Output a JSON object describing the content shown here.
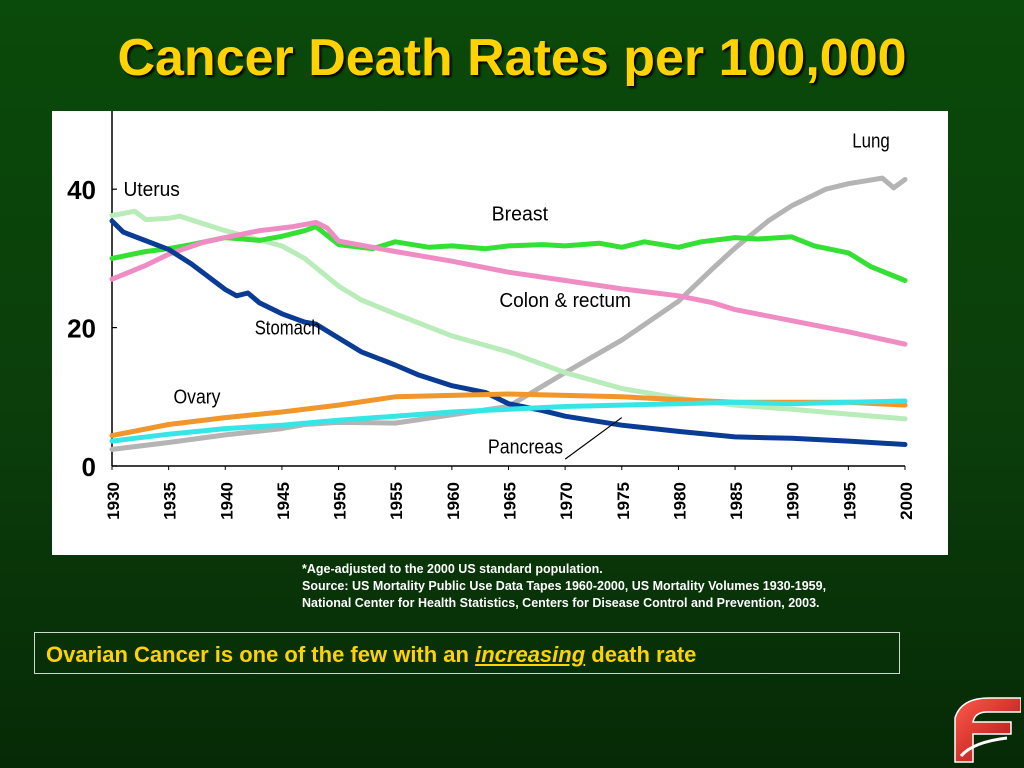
{
  "page_title": "Cancer Death Rates per 100,000",
  "footnote": {
    "line1": "*Age-adjusted to the 2000 US standard population.",
    "line2": "Source:  US Mortality Public Use Data Tapes 1960-2000, US Mortality Volumes 1930-1959,",
    "line3": "National Center for Health Statistics, Centers for Disease Control and Prevention, 2003."
  },
  "callout": {
    "before": "Ovarian Cancer is one of the few with an ",
    "emphasis": "increasing",
    "after": " death rate"
  },
  "colors": {
    "background": "#0b3d0b",
    "title": "#ffd200",
    "callout_text": "#ffd200"
  },
  "logo_icon": "red-swoosh-logo-icon",
  "chart_data": {
    "type": "line",
    "title": "",
    "xlabel": "",
    "ylabel": "",
    "xlim": [
      1930,
      2000
    ],
    "ylim": [
      0,
      50
    ],
    "x_ticks": [
      "1930",
      "1935",
      "1940",
      "1945",
      "1950",
      "1955",
      "1960",
      "1965",
      "1970",
      "1975",
      "1980",
      "1985",
      "1990",
      "1995",
      "2000"
    ],
    "y_ticks": [
      "0",
      "20",
      "40"
    ],
    "grid": false,
    "series": [
      {
        "name": "Lung",
        "color": "#b4b4b4",
        "points": [
          [
            1930,
            2.4
          ],
          [
            1935,
            3.4
          ],
          [
            1940,
            4.5
          ],
          [
            1945,
            5.4
          ],
          [
            1947,
            6.0
          ],
          [
            1950,
            6.3
          ],
          [
            1955,
            6.2
          ],
          [
            1960,
            7.4
          ],
          [
            1965,
            8.6
          ],
          [
            1970,
            13.5
          ],
          [
            1975,
            18.2
          ],
          [
            1980,
            23.8
          ],
          [
            1983,
            28.5
          ],
          [
            1985,
            31.5
          ],
          [
            1988,
            35.5
          ],
          [
            1990,
            37.6
          ],
          [
            1993,
            40.0
          ],
          [
            1995,
            40.8
          ],
          [
            1998,
            41.6
          ],
          [
            1999,
            40.2
          ],
          [
            2000,
            41.4
          ]
        ],
        "label_pos": [
          1997,
          46
        ]
      },
      {
        "name": "Uterus",
        "color": "#b8ecb8",
        "points": [
          [
            1930,
            36.2
          ],
          [
            1932,
            36.8
          ],
          [
            1933,
            35.6
          ],
          [
            1935,
            35.8
          ],
          [
            1936,
            36.1
          ],
          [
            1940,
            34.0
          ],
          [
            1945,
            31.8
          ],
          [
            1947,
            30.0
          ],
          [
            1950,
            26.0
          ],
          [
            1952,
            24.0
          ],
          [
            1955,
            22.0
          ],
          [
            1960,
            18.8
          ],
          [
            1965,
            16.5
          ],
          [
            1970,
            13.5
          ],
          [
            1975,
            11.2
          ],
          [
            1980,
            9.8
          ],
          [
            1985,
            8.8
          ],
          [
            1990,
            8.2
          ],
          [
            1995,
            7.5
          ],
          [
            2000,
            6.8
          ]
        ],
        "label_pos": [
          1933.5,
          39
        ]
      },
      {
        "name": "Breast",
        "color": "#33e033",
        "points": [
          [
            1930,
            30.0
          ],
          [
            1933,
            31.0
          ],
          [
            1935,
            31.4
          ],
          [
            1937,
            32.0
          ],
          [
            1940,
            33.0
          ],
          [
            1943,
            32.6
          ],
          [
            1945,
            33.2
          ],
          [
            1947,
            34.0
          ],
          [
            1948,
            34.6
          ],
          [
            1950,
            32.0
          ],
          [
            1953,
            31.4
          ],
          [
            1955,
            32.4
          ],
          [
            1958,
            31.6
          ],
          [
            1960,
            31.8
          ],
          [
            1963,
            31.4
          ],
          [
            1965,
            31.8
          ],
          [
            1968,
            32.0
          ],
          [
            1970,
            31.8
          ],
          [
            1973,
            32.2
          ],
          [
            1975,
            31.6
          ],
          [
            1977,
            32.4
          ],
          [
            1980,
            31.6
          ],
          [
            1982,
            32.4
          ],
          [
            1985,
            33.0
          ],
          [
            1987,
            32.8
          ],
          [
            1990,
            33.1
          ],
          [
            1992,
            31.8
          ],
          [
            1995,
            30.8
          ],
          [
            1997,
            28.8
          ],
          [
            2000,
            26.8
          ]
        ],
        "label_pos": [
          1966,
          35.5
        ]
      },
      {
        "name": "Colon & rectum",
        "color": "#f08cc4",
        "points": [
          [
            1930,
            27.0
          ],
          [
            1933,
            29.0
          ],
          [
            1935,
            30.6
          ],
          [
            1938,
            32.3
          ],
          [
            1940,
            33.0
          ],
          [
            1943,
            34.0
          ],
          [
            1946,
            34.6
          ],
          [
            1948,
            35.2
          ],
          [
            1949,
            34.4
          ],
          [
            1950,
            32.5
          ],
          [
            1955,
            31.0
          ],
          [
            1960,
            29.6
          ],
          [
            1965,
            28.0
          ],
          [
            1970,
            26.8
          ],
          [
            1975,
            25.6
          ],
          [
            1980,
            24.6
          ],
          [
            1983,
            23.6
          ],
          [
            1985,
            22.6
          ],
          [
            1990,
            21.0
          ],
          [
            1995,
            19.4
          ],
          [
            2000,
            17.6
          ]
        ],
        "label_pos": [
          1970,
          23
        ]
      },
      {
        "name": "Stomach",
        "color": "#0a3c96",
        "points": [
          [
            1930,
            35.4
          ],
          [
            1931,
            33.8
          ],
          [
            1935,
            31.3
          ],
          [
            1937,
            29.2
          ],
          [
            1940,
            25.5
          ],
          [
            1941,
            24.6
          ],
          [
            1942,
            25.0
          ],
          [
            1943,
            23.6
          ],
          [
            1945,
            22.0
          ],
          [
            1947,
            20.8
          ],
          [
            1948,
            20.5
          ],
          [
            1950,
            18.5
          ],
          [
            1952,
            16.5
          ],
          [
            1955,
            14.6
          ],
          [
            1957,
            13.2
          ],
          [
            1960,
            11.6
          ],
          [
            1963,
            10.6
          ],
          [
            1965,
            9.0
          ],
          [
            1968,
            8.0
          ],
          [
            1970,
            7.2
          ],
          [
            1975,
            5.9
          ],
          [
            1980,
            5.0
          ],
          [
            1985,
            4.2
          ],
          [
            1990,
            4.0
          ],
          [
            1995,
            3.6
          ],
          [
            2000,
            3.1
          ]
        ],
        "label_pos": [
          1945.5,
          19
        ]
      },
      {
        "name": "Ovary",
        "color": "#f0962a",
        "points": [
          [
            1930,
            4.4
          ],
          [
            1935,
            6.0
          ],
          [
            1940,
            7.0
          ],
          [
            1945,
            7.8
          ],
          [
            1950,
            8.8
          ],
          [
            1955,
            10.0
          ],
          [
            1960,
            10.2
          ],
          [
            1965,
            10.4
          ],
          [
            1970,
            10.2
          ],
          [
            1975,
            10.0
          ],
          [
            1980,
            9.6
          ],
          [
            1985,
            9.2
          ],
          [
            1990,
            9.2
          ],
          [
            1995,
            9.2
          ],
          [
            2000,
            8.8
          ]
        ],
        "label_pos": [
          1937.5,
          9
        ]
      },
      {
        "name": "Pancreas",
        "color": "#36e6e6",
        "points": [
          [
            1930,
            3.6
          ],
          [
            1935,
            4.6
          ],
          [
            1940,
            5.4
          ],
          [
            1945,
            5.9
          ],
          [
            1950,
            6.6
          ],
          [
            1955,
            7.2
          ],
          [
            1960,
            7.8
          ],
          [
            1965,
            8.2
          ],
          [
            1970,
            8.6
          ],
          [
            1975,
            8.8
          ],
          [
            1980,
            9.0
          ],
          [
            1985,
            9.2
          ],
          [
            1990,
            9.0
          ],
          [
            1995,
            9.2
          ],
          [
            2000,
            9.4
          ]
        ],
        "label_pos": [
          1966.5,
          1.8
        ],
        "pointer": [
          [
            1970,
            1.0
          ],
          [
            1975,
            7.0
          ]
        ]
      }
    ]
  }
}
